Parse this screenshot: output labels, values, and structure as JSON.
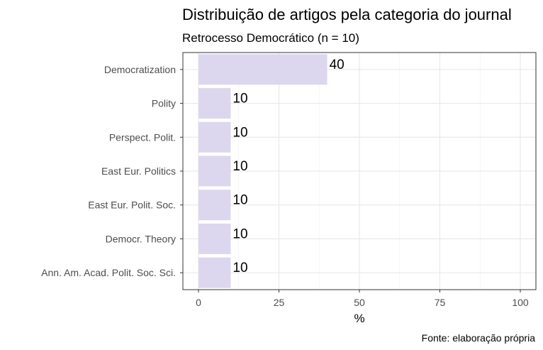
{
  "chart_data": {
    "type": "bar",
    "orientation": "horizontal",
    "title": "Distribuição de artigos pela categoria do journal",
    "subtitle": "Retrocesso Democrático (n = 10)",
    "categories": [
      "Democratization",
      "Polity",
      "Perspect. Polit.",
      "East Eur. Politics",
      "East Eur. Polit. Soc.",
      "Democr. Theory",
      "Ann. Am. Acad. Polit. Soc. Sci."
    ],
    "values": [
      40,
      10,
      10,
      10,
      10,
      10,
      10
    ],
    "data_labels": [
      "40",
      "10",
      "10",
      "10",
      "10",
      "10",
      "10"
    ],
    "xlabel": "%",
    "ylabel": "",
    "xlim": [
      0,
      100
    ],
    "xticks": [
      0,
      25,
      50,
      75,
      100
    ],
    "xtick_labels": [
      "0",
      "25",
      "50",
      "75",
      "100"
    ],
    "grid": true,
    "bar_color": "#dcd7ee",
    "caption": "Fonte: elaboração própria"
  }
}
